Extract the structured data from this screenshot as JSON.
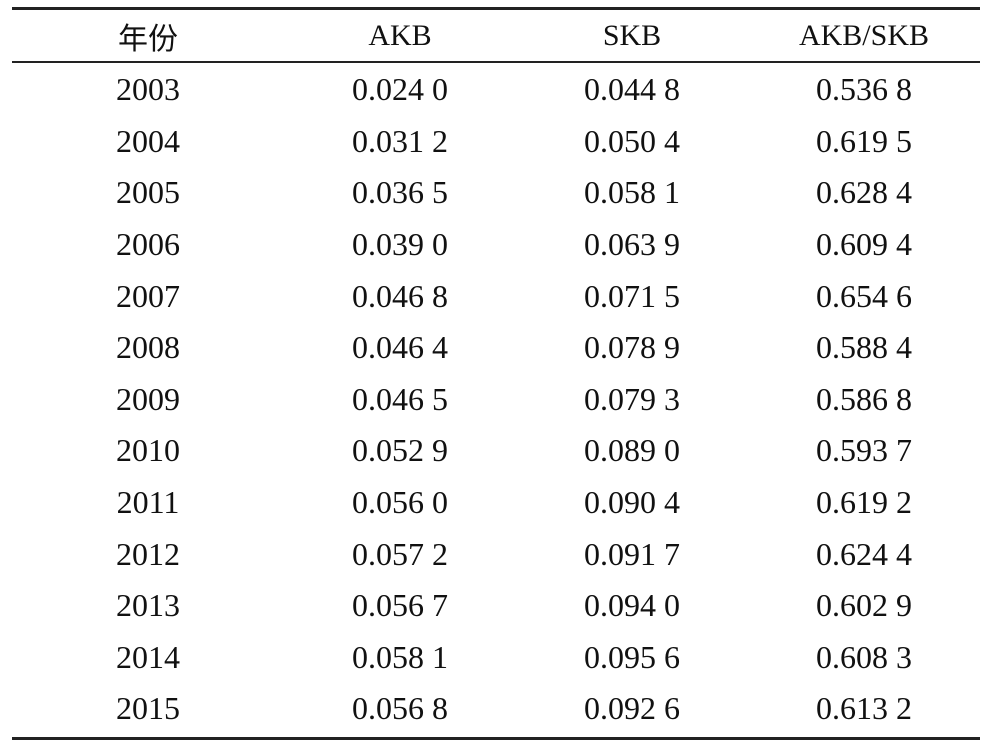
{
  "table": {
    "headers": [
      "年份",
      "AKB",
      "SKB",
      "AKB/SKB"
    ],
    "rows": [
      [
        "2003",
        "0.024 0",
        "0.044 8",
        "0.536 8"
      ],
      [
        "2004",
        "0.031 2",
        "0.050 4",
        "0.619 5"
      ],
      [
        "2005",
        "0.036 5",
        "0.058 1",
        "0.628 4"
      ],
      [
        "2006",
        "0.039 0",
        "0.063 9",
        "0.609 4"
      ],
      [
        "2007",
        "0.046 8",
        "0.071 5",
        "0.654 6"
      ],
      [
        "2008",
        "0.046 4",
        "0.078 9",
        "0.588 4"
      ],
      [
        "2009",
        "0.046 5",
        "0.079 3",
        "0.586 8"
      ],
      [
        "2010",
        "0.052 9",
        "0.089 0",
        "0.593 7"
      ],
      [
        "2011",
        "0.056 0",
        "0.090 4",
        "0.619 2"
      ],
      [
        "2012",
        "0.057 2",
        "0.091 7",
        "0.624 4"
      ],
      [
        "2013",
        "0.056 7",
        "0.094 0",
        "0.602 9"
      ],
      [
        "2014",
        "0.058 1",
        "0.095 6",
        "0.608 3"
      ],
      [
        "2015",
        "0.056 8",
        "0.092 6",
        "0.613 2"
      ]
    ]
  }
}
